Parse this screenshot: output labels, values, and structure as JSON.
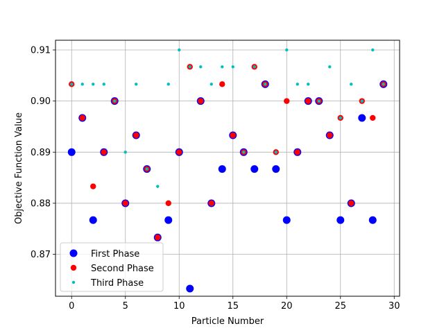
{
  "chart_data": {
    "type": "scatter",
    "xlabel": "Particle Number",
    "ylabel": "Objective Function Value",
    "xlim": [
      -1.5,
      30.5
    ],
    "ylim": [
      0.8618,
      0.9119
    ],
    "xticks": [
      0,
      5,
      10,
      15,
      20,
      25,
      30
    ],
    "yticks": [
      0.87,
      0.88,
      0.89,
      0.9,
      0.91
    ],
    "ytick_labels": [
      "0.87",
      "0.88",
      "0.89",
      "0.90",
      "0.91"
    ],
    "grid": true,
    "legend_position": "lower-left",
    "series": [
      {
        "name": "First Phase",
        "color": "#0000ff",
        "marker": "large-circle",
        "x": [
          0,
          1,
          2,
          3,
          4,
          5,
          6,
          7,
          8,
          9,
          10,
          11,
          12,
          13,
          14,
          15,
          16,
          17,
          18,
          19,
          20,
          21,
          22,
          23,
          24,
          25,
          26,
          27,
          28,
          29
        ],
        "y": [
          0.89,
          0.8967,
          0.8767,
          0.89,
          0.9,
          0.88,
          0.8933,
          0.8867,
          0.8733,
          0.8767,
          0.89,
          0.8633,
          0.9,
          0.88,
          0.8867,
          0.8933,
          0.89,
          0.8867,
          0.9033,
          0.8867,
          0.8767,
          0.89,
          0.9,
          0.9,
          0.8933,
          0.8767,
          0.88,
          0.8967,
          0.8767,
          0.9033
        ]
      },
      {
        "name": "Second Phase",
        "color": "#ff0000",
        "marker": "medium-circle",
        "x": [
          0,
          1,
          2,
          3,
          4,
          5,
          6,
          7,
          8,
          9,
          10,
          11,
          12,
          13,
          14,
          15,
          16,
          17,
          18,
          19,
          20,
          21,
          22,
          23,
          24,
          25,
          26,
          27,
          28,
          29
        ],
        "y": [
          0.9033,
          0.8967,
          0.8833,
          0.89,
          0.9,
          0.88,
          0.8933,
          0.8867,
          0.8733,
          0.88,
          0.89,
          0.9067,
          0.9,
          0.88,
          0.9033,
          0.8933,
          0.89,
          0.9067,
          0.9033,
          0.89,
          0.9,
          0.89,
          0.9,
          0.9,
          0.8933,
          0.8967,
          0.88,
          0.9,
          0.8967,
          0.9033
        ]
      },
      {
        "name": "Third Phase",
        "color": "#00bfbf",
        "marker": "small-dot",
        "x": [
          0,
          1,
          2,
          3,
          4,
          5,
          6,
          7,
          8,
          9,
          10,
          11,
          12,
          13,
          14,
          15,
          16,
          17,
          18,
          19,
          20,
          21,
          22,
          23,
          24,
          25,
          26,
          27,
          28,
          29
        ],
        "y": [
          0.9033,
          0.9033,
          0.9033,
          0.9033,
          0.9,
          0.89,
          0.9033,
          0.8867,
          0.8833,
          0.9033,
          0.91,
          0.9067,
          0.9067,
          0.9033,
          0.9067,
          0.9067,
          0.89,
          0.9067,
          0.9033,
          0.89,
          0.91,
          0.9033,
          0.9033,
          0.9,
          0.9067,
          0.8967,
          0.9033,
          0.9,
          0.91,
          0.9033
        ]
      }
    ]
  }
}
